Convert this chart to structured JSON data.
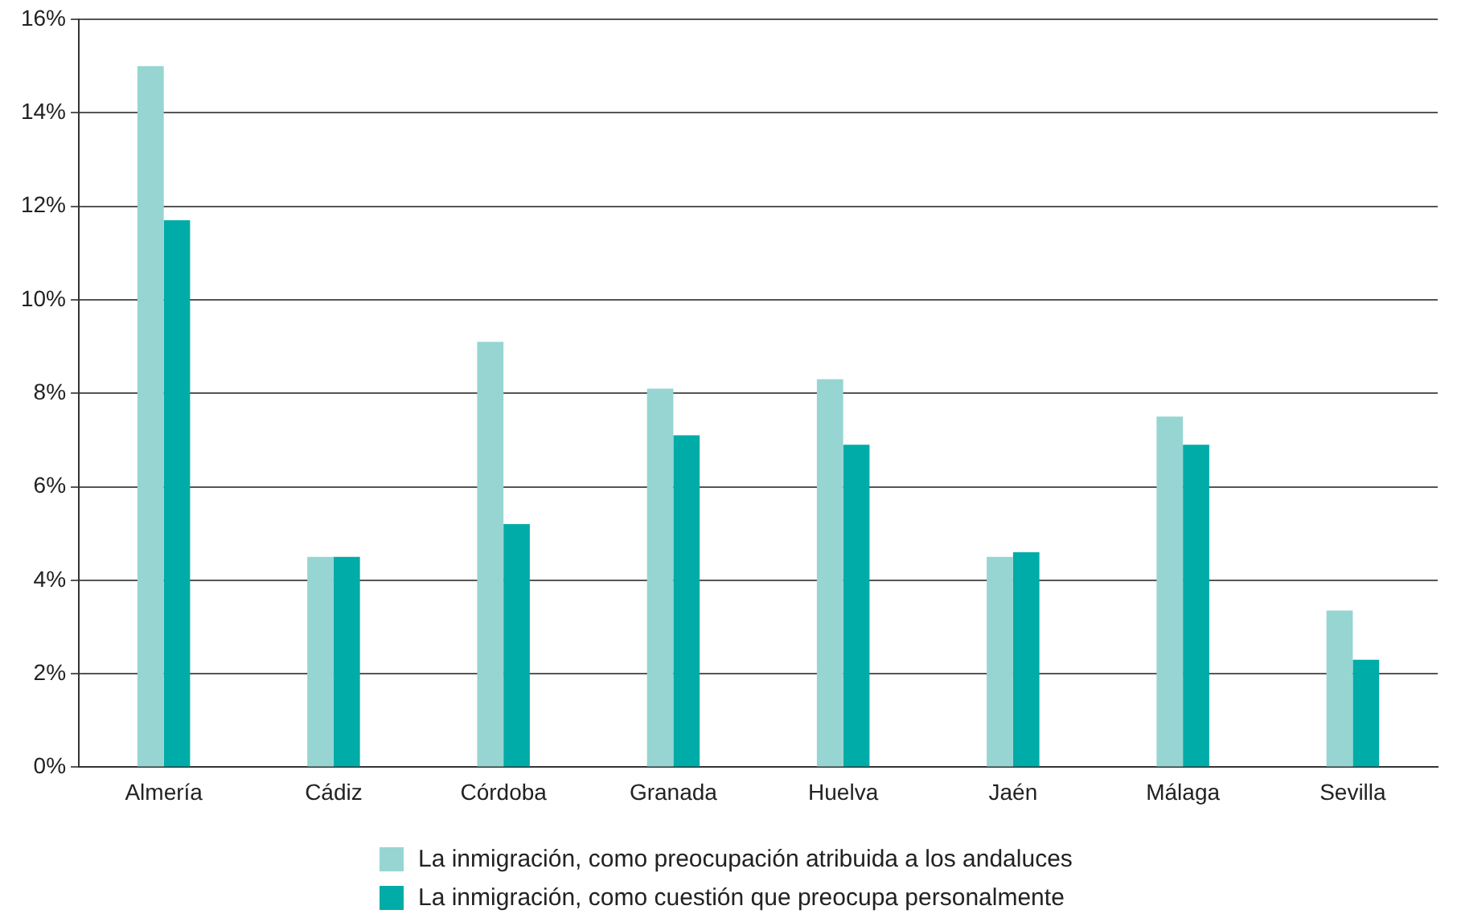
{
  "chart_data": {
    "type": "bar",
    "categories": [
      "Almería",
      "Cádiz",
      "Córdoba",
      "Granada",
      "Huelva",
      "Jaén",
      "Málaga",
      "Sevilla"
    ],
    "series": [
      {
        "name": "La inmigración, como preocupación atribuida a los andaluces",
        "color": "#96d5d2",
        "values": [
          15.0,
          4.5,
          9.1,
          8.1,
          8.3,
          4.5,
          7.5,
          3.35
        ]
      },
      {
        "name": "La inmigración, como cuestión que preocupa personalmente",
        "color": "#00aca8",
        "values": [
          11.7,
          4.5,
          5.2,
          7.1,
          6.9,
          4.6,
          6.9,
          2.3
        ]
      }
    ],
    "ylim": [
      0,
      16
    ],
    "yticks": [
      {
        "value": 0,
        "label": "0%"
      },
      {
        "value": 2,
        "label": "2%"
      },
      {
        "value": 4,
        "label": "4%"
      },
      {
        "value": 6,
        "label": "6%"
      },
      {
        "value": 8,
        "label": "8%"
      },
      {
        "value": 10,
        "label": "10%"
      },
      {
        "value": 12,
        "label": "12%"
      },
      {
        "value": 14,
        "label": "14%"
      },
      {
        "value": 16,
        "label": "16%"
      }
    ],
    "grid": "y",
    "legend": "bottom"
  }
}
